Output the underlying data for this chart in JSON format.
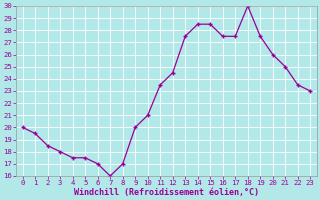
{
  "x": [
    0,
    1,
    2,
    3,
    4,
    5,
    6,
    7,
    8,
    9,
    10,
    11,
    12,
    13,
    14,
    15,
    16,
    17,
    18,
    19,
    20,
    21,
    22,
    23
  ],
  "y": [
    20.0,
    19.5,
    18.5,
    18.0,
    17.5,
    17.5,
    17.0,
    16.0,
    17.0,
    20.0,
    21.0,
    23.5,
    24.5,
    27.5,
    28.5,
    28.5,
    27.5,
    27.5,
    30.0,
    27.5,
    26.0,
    25.0,
    23.5,
    23.0
  ],
  "xlabel": "Windchill (Refroidissement éolien,°C)",
  "ylim": [
    16,
    30
  ],
  "xlim": [
    -0.5,
    23.5
  ],
  "yticks": [
    16,
    17,
    18,
    19,
    20,
    21,
    22,
    23,
    24,
    25,
    26,
    27,
    28,
    29,
    30
  ],
  "xticks": [
    0,
    1,
    2,
    3,
    4,
    5,
    6,
    7,
    8,
    9,
    10,
    11,
    12,
    13,
    14,
    15,
    16,
    17,
    18,
    19,
    20,
    21,
    22,
    23
  ],
  "line_color": "#990099",
  "marker": "+",
  "marker_size": 3.5,
  "marker_lw": 1.0,
  "line_width": 0.9,
  "bg_color": "#b3e8e8",
  "grid_color": "#ffffff",
  "grid_lw": 0.6,
  "tick_label_fontsize": 5.2,
  "xlabel_fontsize": 6.0,
  "spine_color": "#999999"
}
